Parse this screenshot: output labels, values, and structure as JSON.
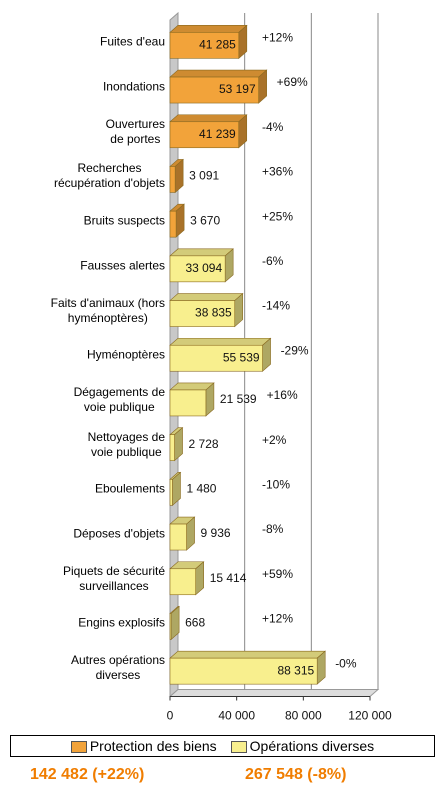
{
  "chart_data": {
    "type": "bar3d",
    "orientation": "horizontal",
    "categories": [
      "Fuites d'eau",
      "Inondations",
      "Ouvertures\nde portes",
      "Recherches\nrécupération d'objets",
      "Bruits suspects",
      "Fausses alertes",
      "Faits d'animaux (hors\nhyménoptères)",
      "Hyménoptères",
      "Dégagements de\nvoie publique",
      "Nettoyages de\nvoie publique",
      "Eboulements",
      "Déposes d'objets",
      "Piquets de sécurité\nsurveillances",
      "Engins explosifs",
      "Autres opérations\ndiverses"
    ],
    "series": [
      {
        "name": "Protection des biens",
        "color": "#f2a33a",
        "values": [
          41285,
          53197,
          41239,
          3091,
          3670,
          null,
          null,
          null,
          null,
          null,
          null,
          null,
          null,
          null,
          null
        ],
        "value_labels": [
          "41 285",
          "53 197",
          "41 239",
          "3 091",
          "3 670",
          null,
          null,
          null,
          null,
          null,
          null,
          null,
          null,
          null,
          null
        ]
      },
      {
        "name": "Opérations diverses",
        "color": "#f8ef8e",
        "values": [
          null,
          null,
          null,
          null,
          null,
          33094,
          38835,
          55539,
          21539,
          2728,
          1480,
          9936,
          15414,
          668,
          88315
        ],
        "value_labels": [
          null,
          null,
          null,
          null,
          null,
          "33 094",
          "38 835",
          "55 539",
          "21 539",
          "2 728",
          "1 480",
          "9 936",
          "15 414",
          "668",
          "88 315"
        ]
      }
    ],
    "changes": [
      "+12%",
      "+69%",
      "-4%",
      "+36%",
      "+25%",
      "-6%",
      "-14%",
      "-29%",
      "+16%",
      "+2%",
      "-10%",
      "-8%",
      "+59%",
      "+12%",
      "-0%"
    ],
    "totals": [
      "142 482 (+22%)",
      "267 548 (-8%)"
    ],
    "xlim": [
      0,
      120000
    ],
    "xticks": [
      0,
      {
        "value": 40000,
        "label": "40 000"
      },
      {
        "value": 80000,
        "label": "80 000"
      },
      {
        "value": 120000,
        "label": "120 000"
      }
    ],
    "grid": true
  }
}
